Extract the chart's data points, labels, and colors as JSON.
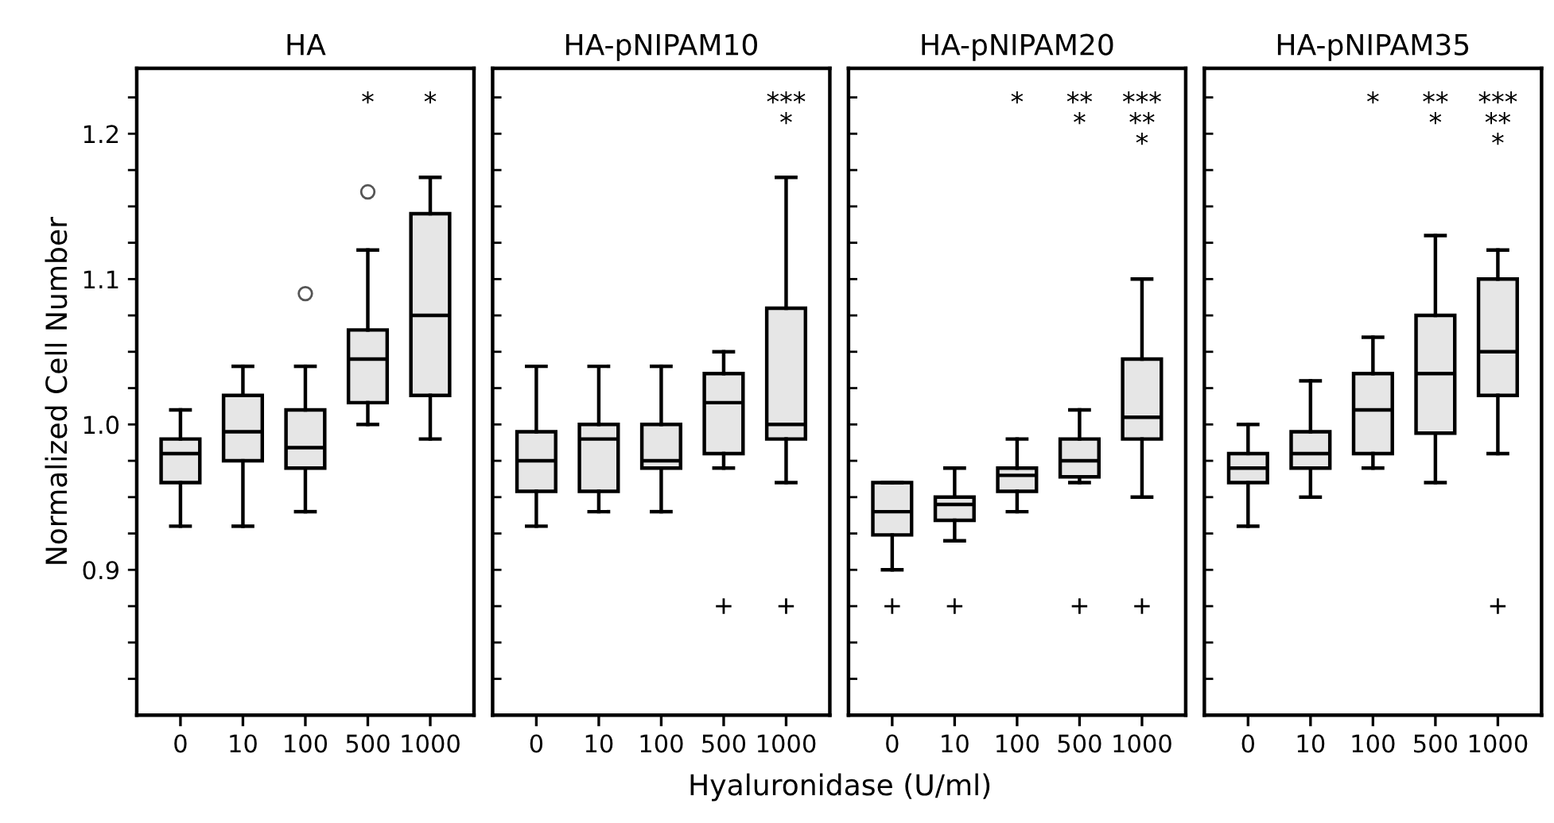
{
  "chart_data": [
    {
      "type": "box",
      "title": "HA",
      "grid": false,
      "ylabel": "Normalized Cell Number",
      "categories": [
        "0",
        "10",
        "100",
        "500",
        "1000"
      ],
      "color": "#e6e6e6",
      "boxes": [
        {
          "low": 0.93,
          "q1": 0.96,
          "median": 0.98,
          "q3": 0.99,
          "high": 1.01
        },
        {
          "low": 0.93,
          "q1": 0.975,
          "median": 0.995,
          "q3": 1.02,
          "high": 1.04
        },
        {
          "low": 0.94,
          "q1": 0.97,
          "median": 0.984,
          "q3": 1.01,
          "high": 1.04,
          "outliers": [
            1.09
          ]
        },
        {
          "low": 1.0,
          "q1": 1.015,
          "median": 1.045,
          "q3": 1.065,
          "high": 1.12,
          "outliers": [
            1.16
          ]
        },
        {
          "low": 0.99,
          "q1": 1.02,
          "median": 1.075,
          "q3": 1.145,
          "high": 1.17
        }
      ],
      "ylim": [
        0.8,
        1.245
      ],
      "yticks": [
        {
          "value": 0.825,
          "label": null
        },
        {
          "value": 0.85,
          "label": null
        },
        {
          "value": 0.875,
          "label": null
        },
        {
          "value": 0.9,
          "label": "0.9"
        },
        {
          "value": 0.925,
          "label": null
        },
        {
          "value": 0.95,
          "label": null
        },
        {
          "value": 0.975,
          "label": null
        },
        {
          "value": 1.0,
          "label": "1.0"
        },
        {
          "value": 1.025,
          "label": null
        },
        {
          "value": 1.05,
          "label": null
        },
        {
          "value": 1.075,
          "label": null
        },
        {
          "value": 1.1,
          "label": "1.1"
        },
        {
          "value": 1.125,
          "label": null
        },
        {
          "value": 1.15,
          "label": null
        },
        {
          "value": 1.175,
          "label": null
        },
        {
          "value": 1.2,
          "label": "1.2"
        },
        {
          "value": 1.225,
          "label": null
        }
      ],
      "annotations": [
        null,
        null,
        null,
        "*",
        "*"
      ]
    },
    {
      "type": "box",
      "title": "HA-pNIPAM10",
      "xlabel": "Hyaluronidase (U/ml)",
      "grid": false,
      "categories": [
        "0",
        "10",
        "100",
        "500",
        "1000"
      ],
      "color": "#e6e6e6",
      "boxes": [
        {
          "low": 0.93,
          "q1": 0.954,
          "median": 0.975,
          "q3": 0.995,
          "high": 1.04
        },
        {
          "low": 0.94,
          "q1": 0.954,
          "median": 0.99,
          "q3": 1.0,
          "high": 1.04
        },
        {
          "low": 0.94,
          "q1": 0.97,
          "median": 0.975,
          "q3": 1.0,
          "high": 1.04
        },
        {
          "low": 0.97,
          "q1": 0.98,
          "median": 1.015,
          "q3": 1.035,
          "high": 1.05
        },
        {
          "low": 0.96,
          "q1": 0.99,
          "median": 1.0,
          "q3": 1.08,
          "high": 1.17
        }
      ],
      "series": [
        {
          "type": "scatter",
          "values": [
            null,
            null,
            null,
            0.875,
            0.875
          ],
          "color": "#000000"
        }
      ],
      "marker": "cross",
      "ylim": [
        0.8,
        1.245
      ],
      "yticks": [
        {
          "value": 0.825,
          "label": null
        },
        {
          "value": 0.85,
          "label": null
        },
        {
          "value": 0.875,
          "label": null
        },
        {
          "value": 0.9,
          "label": null
        },
        {
          "value": 0.925,
          "label": null
        },
        {
          "value": 0.95,
          "label": null
        },
        {
          "value": 0.975,
          "label": null
        },
        {
          "value": 1.0,
          "label": null
        },
        {
          "value": 1.025,
          "label": null
        },
        {
          "value": 1.05,
          "label": null
        },
        {
          "value": 1.075,
          "label": null
        },
        {
          "value": 1.1,
          "label": null
        },
        {
          "value": 1.125,
          "label": null
        },
        {
          "value": 1.15,
          "label": null
        },
        {
          "value": 1.175,
          "label": null
        },
        {
          "value": 1.2,
          "label": null
        },
        {
          "value": 1.225,
          "label": null
        }
      ],
      "tick_labels": "x",
      "annotations": [
        null,
        null,
        null,
        null,
        "***\n*"
      ]
    },
    {
      "type": "box",
      "title": "HA-pNIPAM20",
      "grid": false,
      "categories": [
        "0",
        "10",
        "100",
        "500",
        "1000"
      ],
      "color": "#e6e6e6",
      "boxes": [
        {
          "low": 0.9,
          "q1": 0.924,
          "median": 0.94,
          "q3": 0.96,
          "high": 0.96
        },
        {
          "low": 0.92,
          "q1": 0.934,
          "median": 0.945,
          "q3": 0.95,
          "high": 0.97
        },
        {
          "low": 0.94,
          "q1": 0.954,
          "median": 0.965,
          "q3": 0.97,
          "high": 0.99
        },
        {
          "low": 0.96,
          "q1": 0.964,
          "median": 0.975,
          "q3": 0.99,
          "high": 1.01
        },
        {
          "low": 0.95,
          "q1": 0.99,
          "median": 1.005,
          "q3": 1.045,
          "high": 1.1
        }
      ],
      "series": [
        {
          "type": "scatter",
          "values": [
            0.875,
            0.875,
            null,
            0.875,
            0.875
          ],
          "color": "#000000"
        }
      ],
      "marker": "cross",
      "ylim": [
        0.8,
        1.245
      ],
      "yticks": [
        {
          "value": 0.825,
          "label": null
        },
        {
          "value": 0.85,
          "label": null
        },
        {
          "value": 0.875,
          "label": null
        },
        {
          "value": 0.9,
          "label": null
        },
        {
          "value": 0.925,
          "label": null
        },
        {
          "value": 0.95,
          "label": null
        },
        {
          "value": 0.975,
          "label": null
        },
        {
          "value": 1.0,
          "label": null
        },
        {
          "value": 1.025,
          "label": null
        },
        {
          "value": 1.05,
          "label": null
        },
        {
          "value": 1.075,
          "label": null
        },
        {
          "value": 1.1,
          "label": null
        },
        {
          "value": 1.125,
          "label": null
        },
        {
          "value": 1.15,
          "label": null
        },
        {
          "value": 1.175,
          "label": null
        },
        {
          "value": 1.2,
          "label": null
        },
        {
          "value": 1.225,
          "label": null
        }
      ],
      "tick_labels": "x",
      "annotations": [
        null,
        null,
        "*",
        "**\n*",
        "***\n**\n*"
      ]
    },
    {
      "type": "box",
      "title": "HA-pNIPAM35",
      "grid": false,
      "categories": [
        "0",
        "10",
        "100",
        "500",
        "1000"
      ],
      "color": "#e6e6e6",
      "boxes": [
        {
          "low": 0.93,
          "q1": 0.96,
          "median": 0.97,
          "q3": 0.98,
          "high": 1.0
        },
        {
          "low": 0.95,
          "q1": 0.97,
          "median": 0.98,
          "q3": 0.995,
          "high": 1.03
        },
        {
          "low": 0.97,
          "q1": 0.98,
          "median": 1.01,
          "q3": 1.035,
          "high": 1.06
        },
        {
          "low": 0.96,
          "q1": 0.994,
          "median": 1.035,
          "q3": 1.075,
          "high": 1.13
        },
        {
          "low": 0.98,
          "q1": 1.02,
          "median": 1.05,
          "q3": 1.1,
          "high": 1.12
        }
      ],
      "series": [
        {
          "type": "scatter",
          "values": [
            null,
            null,
            null,
            null,
            0.875
          ],
          "color": "#000000"
        }
      ],
      "marker": "cross",
      "ylim": [
        0.8,
        1.245
      ],
      "yticks": [
        {
          "value": 0.825,
          "label": null
        },
        {
          "value": 0.85,
          "label": null
        },
        {
          "value": 0.875,
          "label": null
        },
        {
          "value": 0.9,
          "label": null
        },
        {
          "value": 0.925,
          "label": null
        },
        {
          "value": 0.95,
          "label": null
        },
        {
          "value": 0.975,
          "label": null
        },
        {
          "value": 1.0,
          "label": null
        },
        {
          "value": 1.025,
          "label": null
        },
        {
          "value": 1.05,
          "label": null
        },
        {
          "value": 1.075,
          "label": null
        },
        {
          "value": 1.1,
          "label": null
        },
        {
          "value": 1.125,
          "label": null
        },
        {
          "value": 1.15,
          "label": null
        },
        {
          "value": 1.175,
          "label": null
        },
        {
          "value": 1.2,
          "label": null
        },
        {
          "value": 1.225,
          "label": null
        }
      ],
      "tick_labels": "x",
      "annotations": [
        null,
        null,
        "*",
        "**\n*",
        "***\n**\n*"
      ]
    }
  ]
}
